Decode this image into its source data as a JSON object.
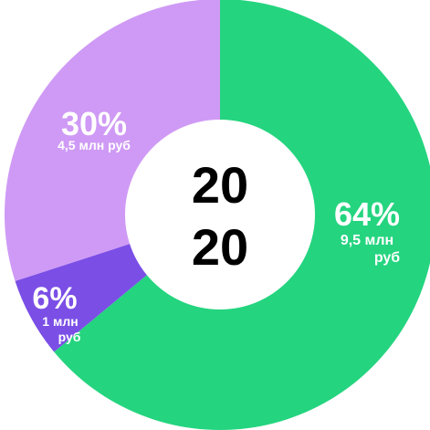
{
  "chart_data": {
    "type": "pie",
    "donut": true,
    "center_label": [
      "20",
      "20"
    ],
    "slices": [
      {
        "value": 64,
        "percent_label": "64%",
        "amount_lines": [
          "9,5 млн",
          "руб"
        ],
        "color": "#24d47f"
      },
      {
        "value": 6,
        "percent_label": "6%",
        "amount_lines": [
          "1 млн",
          "руб"
        ],
        "color": "#7b4ee6"
      },
      {
        "value": 30,
        "percent_label": "30%",
        "amount_lines": [
          "4,5 млн руб"
        ],
        "color": "#cf9af5"
      }
    ]
  }
}
